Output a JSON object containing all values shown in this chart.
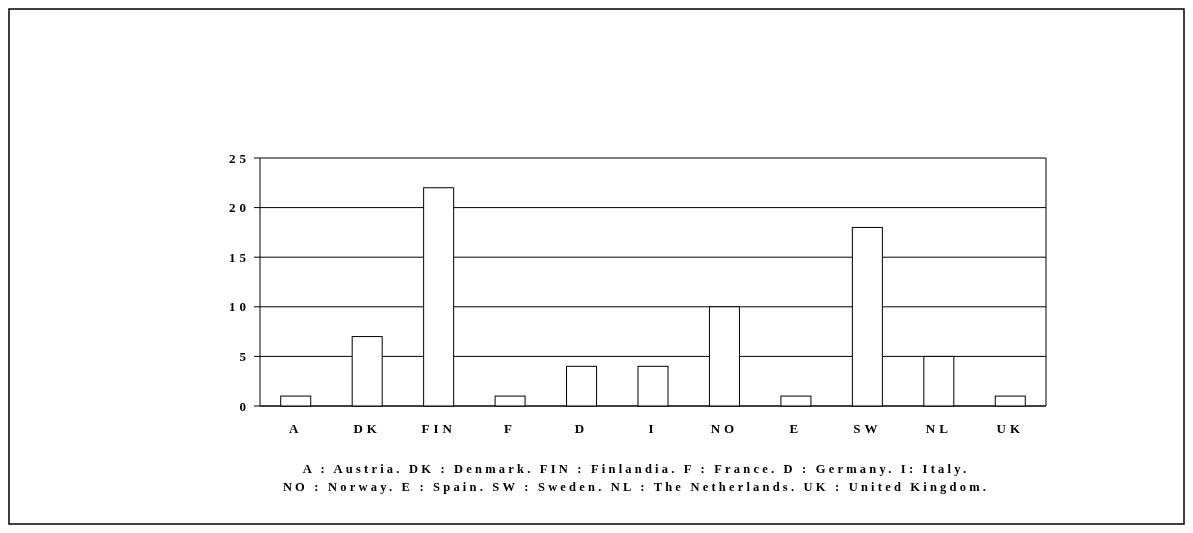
{
  "chart_data": {
    "type": "bar",
    "categories": [
      "A",
      "DK",
      "FIN",
      "F",
      "D",
      "I",
      "NO",
      "E",
      "SW",
      "NL",
      "UK"
    ],
    "values": [
      1,
      7,
      22,
      1,
      4,
      4,
      10,
      1,
      18,
      5,
      1
    ],
    "color": "#ffffff",
    "ylim": [
      0,
      25
    ],
    "yticks": [
      0,
      5,
      10,
      15,
      20,
      25
    ],
    "grid": "y",
    "annotations": [
      "A : Austria. DK : Denmark. FIN : Finlandia. F : France. D : Germany. I: Italy.",
      "NO : Norway. E : Spain. SW : Sweden. NL : The Netherlands. UK : United Kingdom."
    ]
  }
}
